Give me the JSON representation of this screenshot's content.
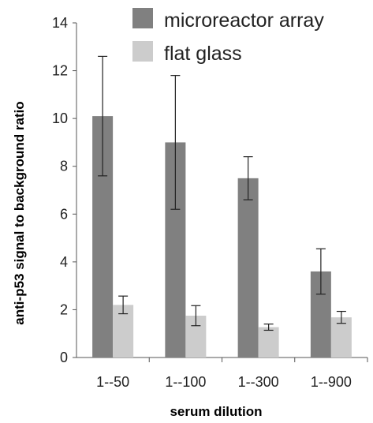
{
  "chart_data": {
    "type": "bar",
    "categories": [
      "1--50",
      "1--100",
      "1--300",
      "1--900"
    ],
    "series": [
      {
        "name": "microreactor array",
        "color": "#808080",
        "values": [
          10.1,
          9.0,
          7.5,
          3.6
        ],
        "error": [
          2.5,
          2.8,
          0.9,
          0.95
        ]
      },
      {
        "name": "flat glass",
        "color": "#cccccc",
        "values": [
          2.2,
          1.75,
          1.27,
          1.68
        ],
        "error": [
          0.37,
          0.42,
          0.13,
          0.25
        ]
      }
    ],
    "xlabel": "serum dilution",
    "ylabel": "anti-p53 signal to background ratio",
    "ylim": [
      0,
      14
    ],
    "yticks": [
      0,
      2,
      4,
      6,
      8,
      10,
      12,
      14
    ],
    "grid": false,
    "legend_position": "top-right"
  }
}
